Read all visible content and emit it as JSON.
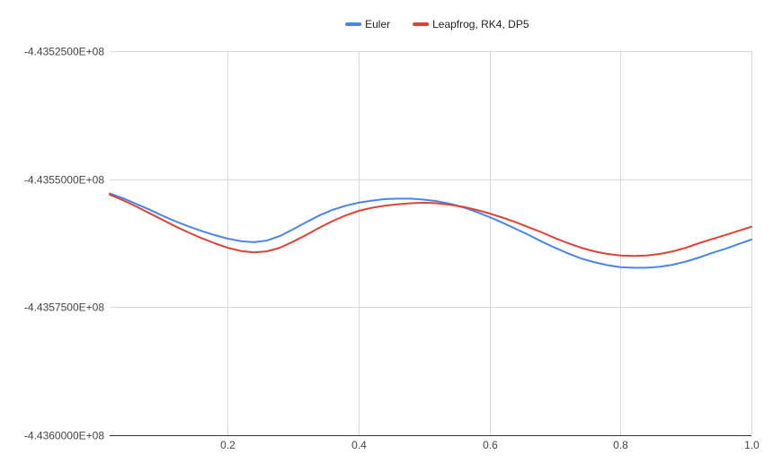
{
  "chart_data": {
    "type": "line",
    "title": "",
    "xlabel": "",
    "ylabel": "",
    "xlim": [
      0.02,
      1.0
    ],
    "ylim": [
      -443600000,
      -443525000
    ],
    "x_ticks": [
      0.2,
      0.4,
      0.6,
      0.8,
      1.0
    ],
    "x_tick_labels": [
      "0.2",
      "0.4",
      "0.6",
      "0.8",
      "1.0"
    ],
    "y_ticks": [
      -443525000,
      -443550000,
      -443575000,
      -443600000
    ],
    "y_tick_labels": [
      "-4.4352500E+08",
      "-4.4355000E+08",
      "-4.4357500E+08",
      "-4.4360000E+08"
    ],
    "grid": true,
    "legend": "top-center",
    "x": [
      0.02,
      0.04,
      0.06,
      0.08,
      0.1,
      0.12,
      0.14,
      0.16,
      0.18,
      0.2,
      0.22,
      0.24,
      0.26,
      0.28,
      0.3,
      0.32,
      0.34,
      0.36,
      0.38,
      0.4,
      0.42,
      0.44,
      0.46,
      0.48,
      0.5,
      0.52,
      0.54,
      0.56,
      0.58,
      0.6,
      0.62,
      0.64,
      0.66,
      0.68,
      0.7,
      0.72,
      0.74,
      0.76,
      0.78,
      0.8,
      0.82,
      0.84,
      0.86,
      0.88,
      0.9,
      0.92,
      0.94,
      0.96,
      0.98,
      1.0
    ],
    "series": [
      {
        "name": "Euler",
        "color": "#4a86e8",
        "values": [
          -443552800,
          -443553700,
          -443554800,
          -443555900,
          -443557100,
          -443558200,
          -443559200,
          -443560100,
          -443560900,
          -443561600,
          -443562100,
          -443562300,
          -443562000,
          -443561100,
          -443559800,
          -443558400,
          -443557100,
          -443556000,
          -443555200,
          -443554600,
          -443554200,
          -443553900,
          -443553800,
          -443553800,
          -443554000,
          -443554300,
          -443554800,
          -443555500,
          -443556400,
          -443557400,
          -443558500,
          -443559700,
          -443560900,
          -443562200,
          -443563400,
          -443564500,
          -443565500,
          -443566200,
          -443566800,
          -443567200,
          -443567300,
          -443567300,
          -443567100,
          -443566700,
          -443566100,
          -443565300,
          -443564400,
          -443563600,
          -443562700,
          -443561800
        ]
      },
      {
        "name": "Leapfrog, RK4, DP5",
        "color": "#db4437",
        "values": [
          -443553000,
          -443554100,
          -443555300,
          -443556600,
          -443557900,
          -443559200,
          -443560400,
          -443561500,
          -443562500,
          -443563400,
          -443564000,
          -443564300,
          -443564100,
          -443563400,
          -443562200,
          -443560900,
          -443559500,
          -443558200,
          -443557100,
          -443556200,
          -443555600,
          -443555200,
          -443554900,
          -443554700,
          -443554600,
          -443554700,
          -443555000,
          -443555400,
          -443556000,
          -443556700,
          -443557500,
          -443558400,
          -443559400,
          -443560400,
          -443561500,
          -443562500,
          -443563400,
          -443564100,
          -443564600,
          -443564900,
          -443565000,
          -443564900,
          -443564600,
          -443564100,
          -443563400,
          -443562500,
          -443561700,
          -443560900,
          -443560100,
          -443559300
        ]
      }
    ]
  }
}
